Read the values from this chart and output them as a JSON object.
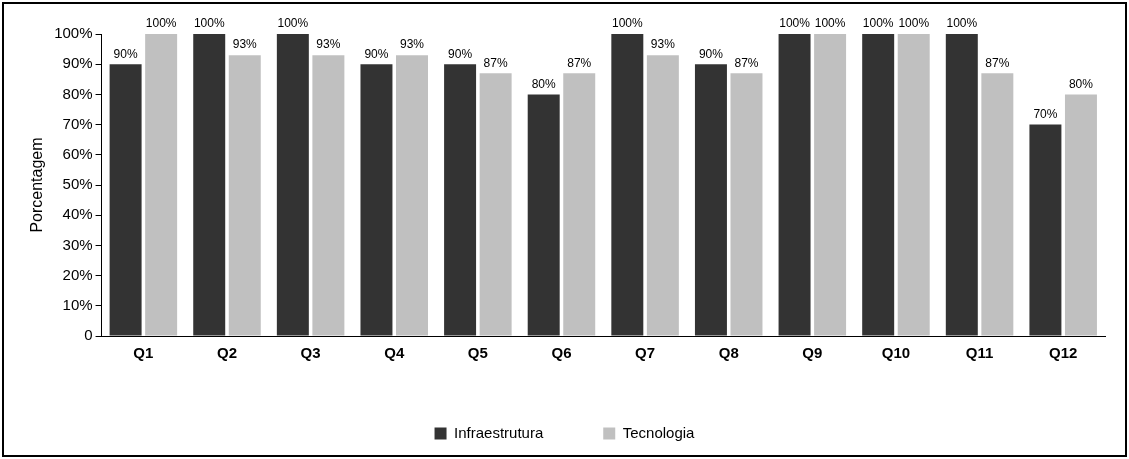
{
  "chart_data": {
    "type": "bar",
    "ylabel": "Porcentagem",
    "categories": [
      "Q1",
      "Q2",
      "Q3",
      "Q4",
      "Q5",
      "Q6",
      "Q7",
      "Q8",
      "Q9",
      "Q10",
      "Q11",
      "Q12"
    ],
    "series": [
      {
        "name": "Infraestrutura",
        "color": "#333333",
        "values": [
          90,
          100,
          100,
          90,
          90,
          80,
          100,
          90,
          100,
          100,
          100,
          70
        ],
        "value_labels": [
          "90%",
          "100%",
          "100%",
          "90%",
          "90%",
          "80%",
          "100%",
          "90%",
          "100%",
          "100%",
          "100%",
          "70%"
        ]
      },
      {
        "name": "Tecnologia",
        "color": "#c0c0c0",
        "values": [
          100,
          93,
          93,
          93,
          87,
          87,
          93,
          87,
          100,
          100,
          87,
          80
        ],
        "value_labels": [
          "100%",
          "93%",
          "93%",
          "93%",
          "87%",
          "87%",
          "93%",
          "87%",
          "100%",
          "100%",
          "87%",
          "80%"
        ]
      }
    ],
    "ylim": [
      0,
      100
    ],
    "yticks": [
      {
        "value": 0,
        "label": "0"
      },
      {
        "value": 10,
        "label": "10%"
      },
      {
        "value": 20,
        "label": "20%"
      },
      {
        "value": 30,
        "label": "30%"
      },
      {
        "value": 40,
        "label": "40%"
      },
      {
        "value": 50,
        "label": "50%"
      },
      {
        "value": 60,
        "label": "60%"
      },
      {
        "value": 70,
        "label": "70%"
      },
      {
        "value": 80,
        "label": "80%"
      },
      {
        "value": 90,
        "label": "90%"
      },
      {
        "value": 100,
        "label": "100%"
      }
    ],
    "grid": false,
    "legend": "bottom"
  }
}
